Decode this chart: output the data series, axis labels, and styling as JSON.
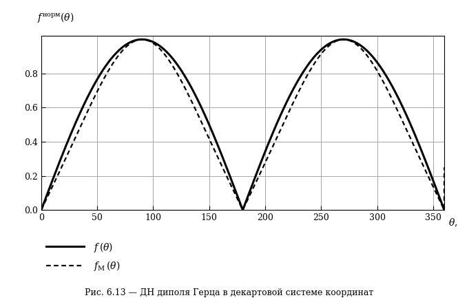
{
  "xlim": [
    0,
    360
  ],
  "ylim": [
    0,
    1.02
  ],
  "xticks": [
    0,
    50,
    100,
    150,
    200,
    250,
    300,
    350
  ],
  "yticks": [
    0,
    0.2,
    0.4,
    0.6,
    0.8
  ],
  "caption": "Рис. 6.13 — ДН диполя Герца в декартовой системе координат",
  "line_color": "#000000",
  "bg_color": "#ffffff",
  "grid_color": "#999999",
  "figsize": [
    6.65,
    4.36
  ],
  "dpi": 100,
  "solid_lw": 2.2,
  "dotted_lw": 1.6
}
